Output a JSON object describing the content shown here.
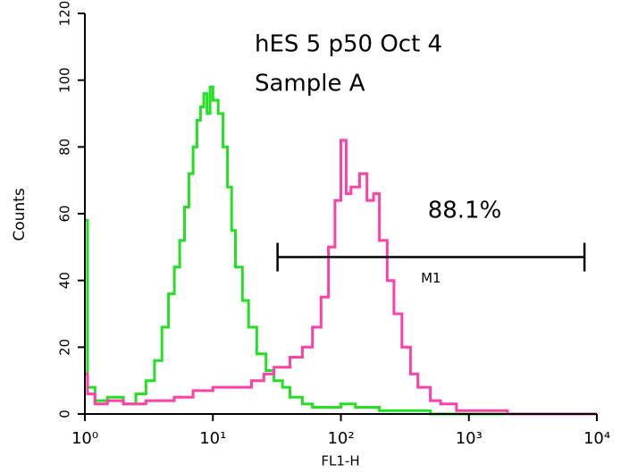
{
  "chart_data": {
    "type": "histogram",
    "title": "hES 5 p50 Oct 4",
    "subtitle": "Sample A",
    "x_label": "FL1-H",
    "y_label": "Counts",
    "log_x": true,
    "xlim": [
      1,
      10000
    ],
    "ylim": [
      0,
      120
    ],
    "xticks": [
      {
        "value": 1,
        "label": "10⁰"
      },
      {
        "value": 10,
        "label": "10¹"
      },
      {
        "value": 100,
        "label": "10²"
      },
      {
        "value": 1000,
        "label": "10³"
      },
      {
        "value": 10000,
        "label": "10⁴"
      }
    ],
    "yticks": [
      0,
      20,
      40,
      60,
      80,
      100,
      120
    ],
    "series": [
      {
        "color": "#22e022",
        "x": [
          1,
          1.05,
          1.2,
          1.5,
          2,
          2.5,
          3,
          3.5,
          4,
          4.5,
          5,
          5.5,
          6,
          6.5,
          7,
          7.5,
          8,
          8.5,
          9,
          9.5,
          10,
          11,
          12,
          13,
          14,
          15,
          17,
          19,
          22,
          26,
          30,
          35,
          40,
          50,
          60,
          80,
          100,
          130,
          200,
          300,
          500,
          1000,
          10000
        ],
        "values": [
          58,
          8,
          4,
          5,
          3,
          6,
          10,
          16,
          26,
          36,
          44,
          52,
          62,
          72,
          80,
          88,
          92,
          96,
          90,
          98,
          94,
          90,
          80,
          68,
          55,
          44,
          34,
          26,
          18,
          13,
          10,
          8,
          5,
          3,
          2,
          2,
          3,
          2,
          1,
          1,
          0,
          0,
          0
        ]
      },
      {
        "color": "#ff3fa8",
        "x": [
          1,
          1.05,
          1.2,
          1.5,
          2,
          3,
          5,
          7,
          10,
          15,
          20,
          25,
          30,
          40,
          50,
          60,
          70,
          80,
          90,
          100,
          110,
          120,
          140,
          160,
          180,
          200,
          230,
          260,
          300,
          350,
          400,
          500,
          600,
          800,
          1000,
          2000,
          10000
        ],
        "values": [
          12,
          6,
          3,
          4,
          3,
          4,
          5,
          7,
          8,
          8,
          10,
          12,
          14,
          17,
          20,
          26,
          35,
          50,
          64,
          82,
          66,
          68,
          72,
          64,
          66,
          52,
          40,
          30,
          20,
          12,
          8,
          4,
          3,
          1,
          1,
          0,
          0
        ]
      }
    ],
    "marker": {
      "label": "M1",
      "range": [
        32,
        8000
      ],
      "y": 47,
      "percent": "88.1%"
    }
  }
}
